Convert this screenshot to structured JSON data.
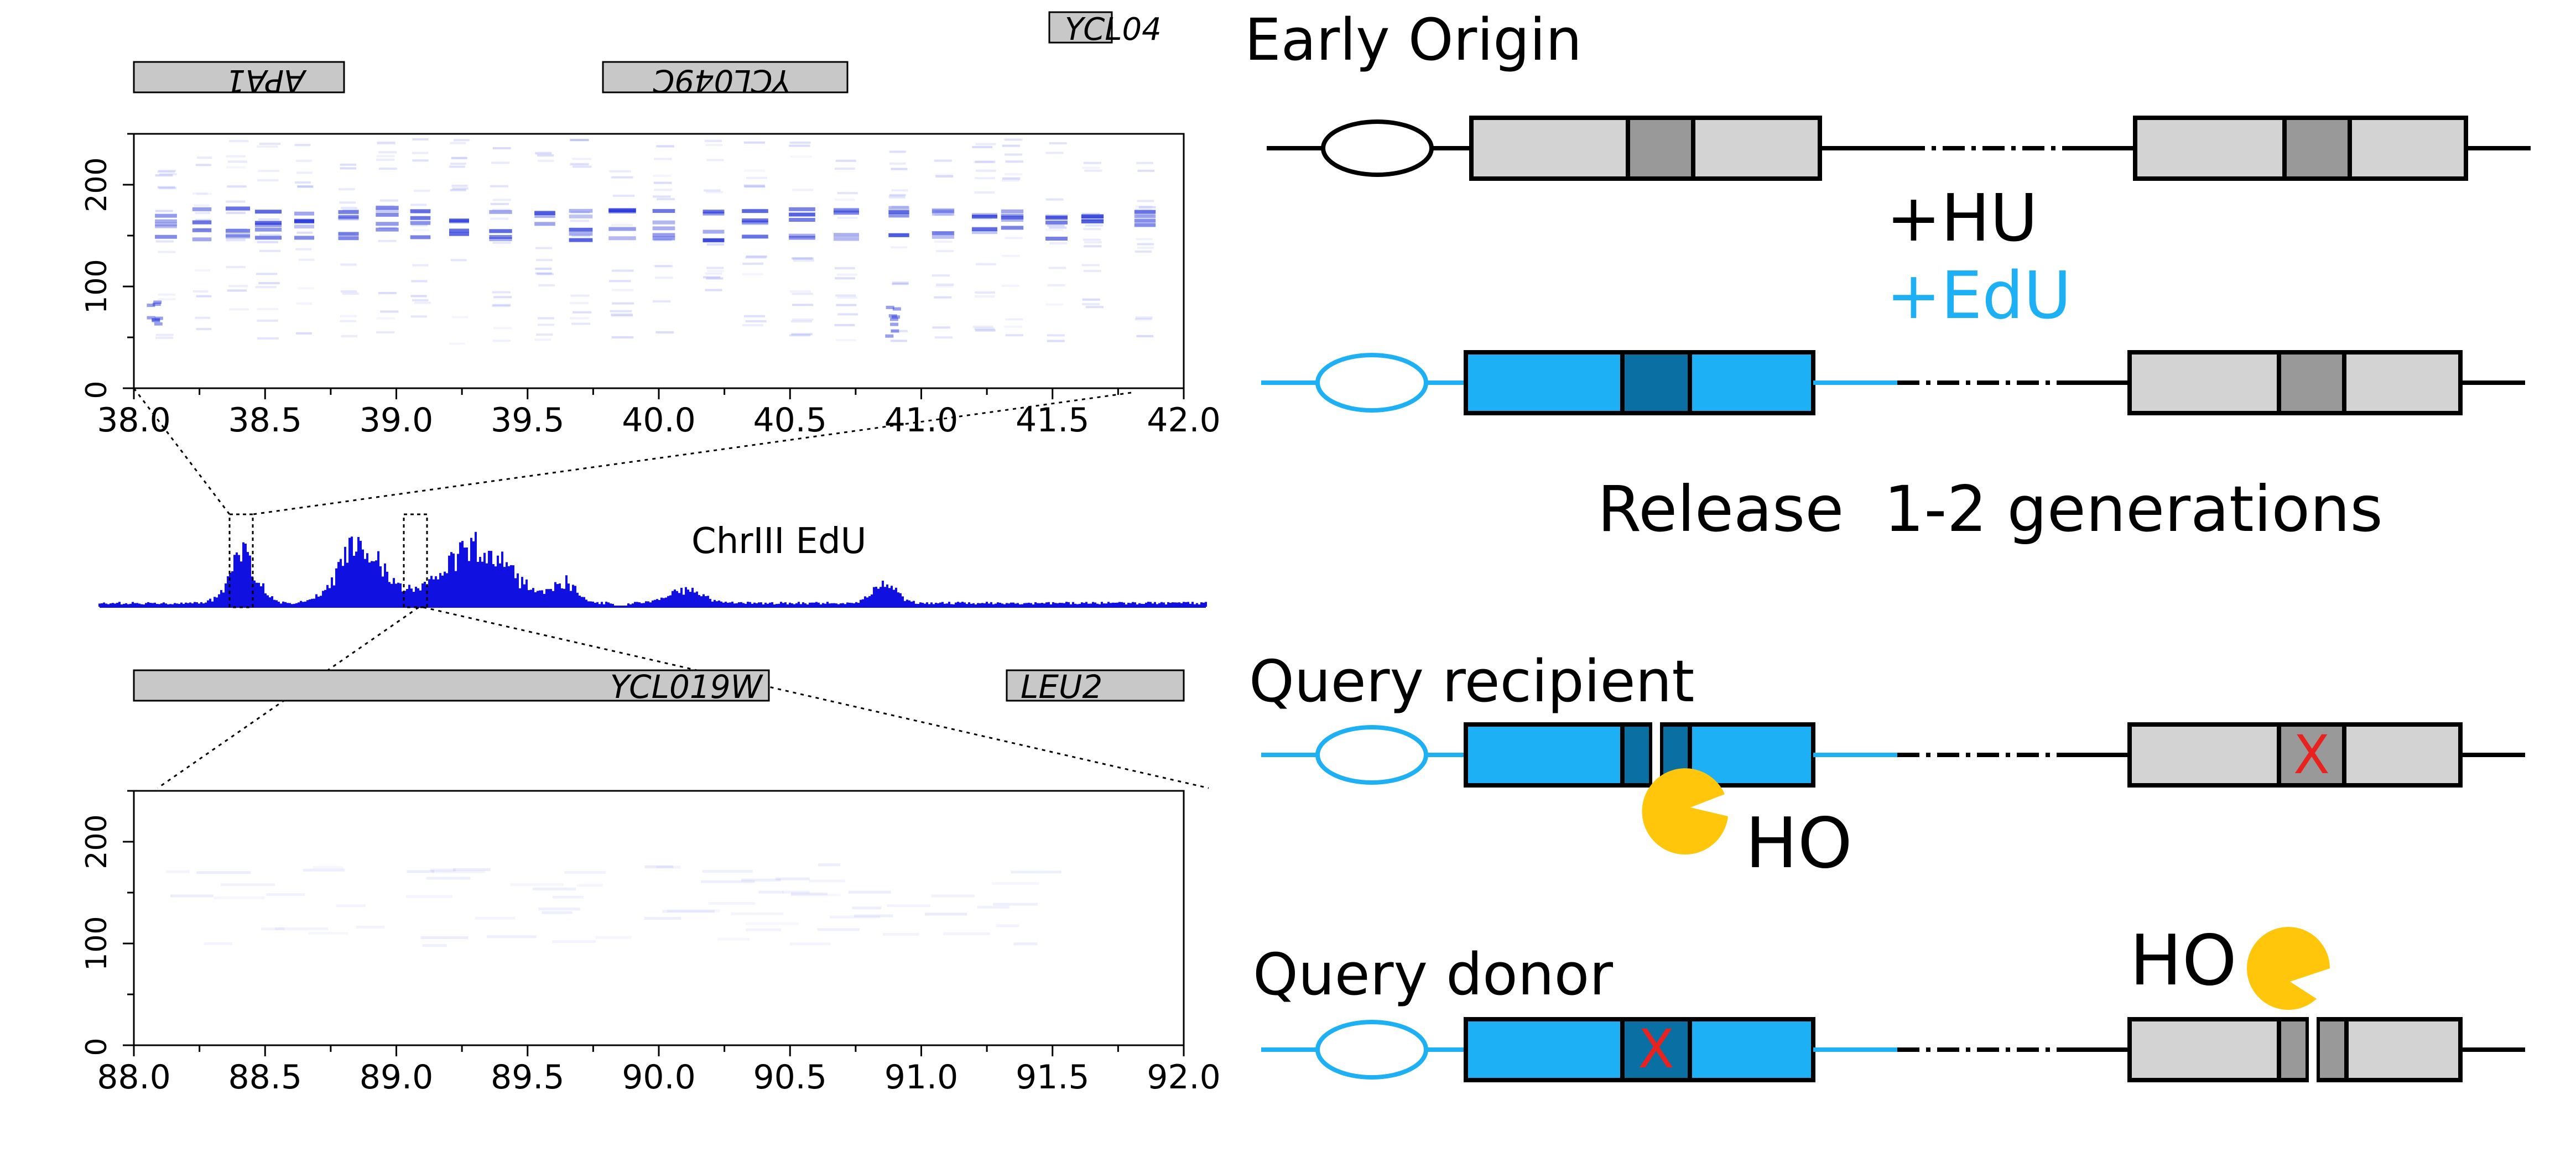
{
  "top_panel": {
    "genes": [
      {
        "label": "APA1",
        "flipped": true
      },
      {
        "label": "YCL049C",
        "flipped": true
      },
      {
        "label": "YCL04",
        "flipped": false
      }
    ],
    "y_ticks": [
      "0",
      "100",
      "200"
    ],
    "x_ticks": [
      "38.0",
      "38.5",
      "39.0",
      "39.5",
      "40.0",
      "40.5",
      "41.0",
      "41.5",
      "42.0"
    ]
  },
  "middle_track": {
    "label": "ChrIII EdU",
    "color": "#1010e0"
  },
  "bottom_panel": {
    "genes": [
      {
        "label": "YCL019W",
        "flipped": false
      },
      {
        "label": "LEU2",
        "flipped": false
      }
    ],
    "y_ticks": [
      "0",
      "100",
      "200"
    ],
    "x_ticks": [
      "88.0",
      "88.5",
      "89.0",
      "89.5",
      "90.0",
      "90.5",
      "91.0",
      "91.5",
      "92.0"
    ]
  },
  "schematic": {
    "title": "Early Origin",
    "treatment_hu": "+HU",
    "treatment_edu": "+EdU",
    "release": "Release  1-2 generations",
    "query_recipient": "Query recipient",
    "query_donor": "Query donor",
    "ho_label": "HO",
    "mutation_mark": "X",
    "colors": {
      "edu_blue": "#1eb0f5",
      "edu_dark": "#0a6fa3",
      "gray_box": "#d3d3d3",
      "gray_dark": "#999999",
      "mutation_red": "#e8231f",
      "ho_yellow": "#ffc60b"
    }
  }
}
